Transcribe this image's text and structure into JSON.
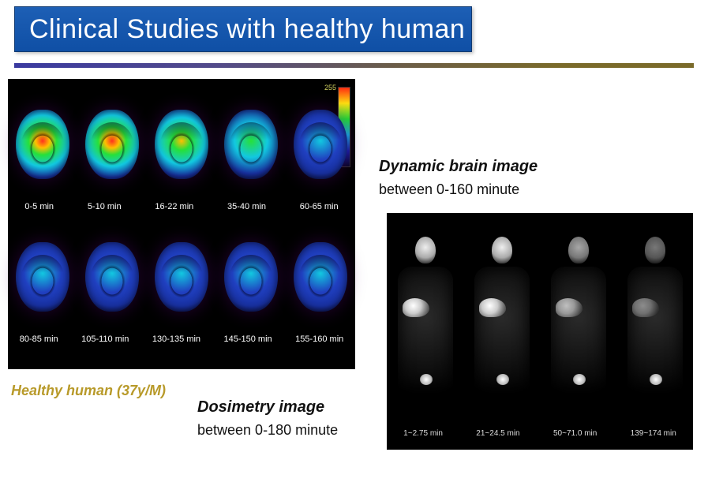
{
  "title": "Clinical Studies with healthy human",
  "brain_panel": {
    "colorbar_max": "255",
    "colorbar_min": "0",
    "row1_intensity": [
      "hot",
      "hot",
      "warm",
      "cool",
      "cold"
    ],
    "row1_labels": [
      "0-5 min",
      "5-10 min",
      "16-22 min",
      "35-40 min",
      "60-65 min"
    ],
    "row2_intensity": [
      "cold",
      "cold",
      "cold",
      "cold",
      "cold"
    ],
    "row2_labels": [
      "80-85 min",
      "105-110 min",
      "130-135 min",
      "145-150 min",
      "155-160 min"
    ]
  },
  "subject_label": "Healthy human (37y/M)",
  "dynamic_title": "Dynamic brain image",
  "dynamic_sub": "between 0-160  minute",
  "dosimetry_title": "Dosimetry image",
  "dosimetry_sub": "between 0-180  minute",
  "body_panel": {
    "classes": [
      "",
      "",
      "dim",
      "dimmer"
    ],
    "labels": [
      "1~2.75 min",
      "21~24.5 min",
      "50~71.0 min",
      "139~174 min"
    ]
  },
  "colors": {
    "title_bg_top": "#1d5fb5",
    "title_bg_bottom": "#0f4fa5",
    "rule_gradient": [
      "#3a3aa0",
      "#534b8a",
      "#6a5c4a",
      "#7a6a2a"
    ],
    "subject_color": "#b89a2a",
    "panel_bg": "#000000"
  }
}
